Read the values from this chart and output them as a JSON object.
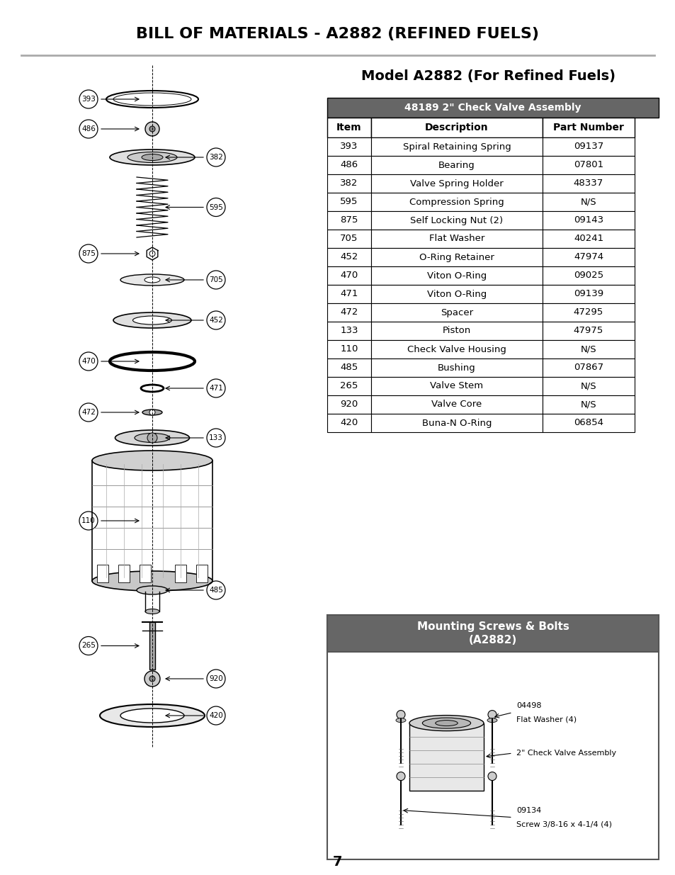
{
  "title": "BILL OF MATERIALS - A2882 (REFINED FUELS)",
  "subtitle": "Model A2882 (For Refined Fuels)",
  "table_header": "48189 2\" Check Valve Assembly",
  "col_headers": [
    "Item",
    "Description",
    "Part Number"
  ],
  "rows": [
    [
      "393",
      "Spiral Retaining Spring",
      "09137"
    ],
    [
      "486",
      "Bearing",
      "07801"
    ],
    [
      "382",
      "Valve Spring Holder",
      "48337"
    ],
    [
      "595",
      "Compression Spring",
      "N/S"
    ],
    [
      "875",
      "Self Locking Nut (2)",
      "09143"
    ],
    [
      "705",
      "Flat Washer",
      "40241"
    ],
    [
      "452",
      "O-Ring Retainer",
      "47974"
    ],
    [
      "470",
      "Viton O-Ring",
      "09025"
    ],
    [
      "471",
      "Viton O-Ring",
      "09139"
    ],
    [
      "472",
      "Spacer",
      "47295"
    ],
    [
      "133",
      "Piston",
      "47975"
    ],
    [
      "110",
      "Check Valve Housing",
      "N/S"
    ],
    [
      "485",
      "Bushing",
      "07867"
    ],
    [
      "265",
      "Valve Stem",
      "N/S"
    ],
    [
      "920",
      "Valve Core",
      "N/S"
    ],
    [
      "420",
      "Buna-N O-Ring",
      "06854"
    ]
  ],
  "mounting_title": "Mounting Screws & Bolts\n(A2882)",
  "page_number": "7",
  "header_bg": "#666666",
  "header_fg": "#ffffff",
  "border_color": "#000000",
  "title_color": "#000000",
  "bg_color": "#ffffff"
}
